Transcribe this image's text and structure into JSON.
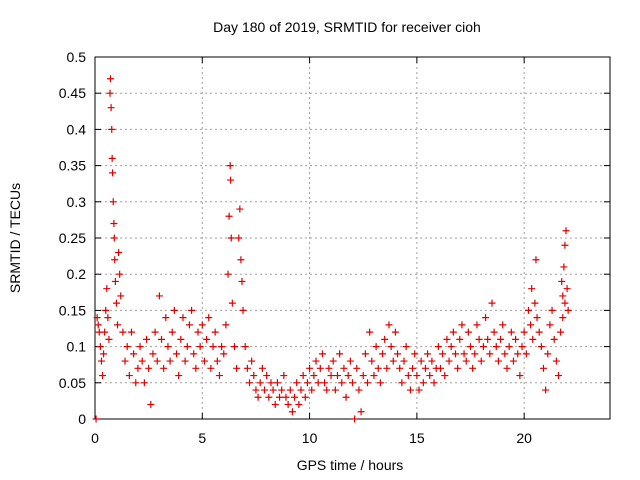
{
  "chart_data": {
    "type": "scatter",
    "title": "Day 180 of 2019, SRMTID for receiver cioh",
    "xlabel": "GPS time / hours",
    "ylabel": "SRMTID / TECUs",
    "xlim": [
      0,
      24
    ],
    "ylim": [
      0,
      0.5
    ],
    "xticks": [
      0,
      5,
      10,
      15,
      20
    ],
    "yticks": [
      0,
      0.05,
      0.1,
      0.15,
      0.2,
      0.25,
      0.3,
      0.35,
      0.4,
      0.45,
      0.5
    ],
    "grid": true,
    "marker": "plus",
    "color": "#e00000",
    "series": [
      {
        "points": [
          [
            0.05,
            0.0
          ],
          [
            0.1,
            0.14
          ],
          [
            0.15,
            0.13
          ],
          [
            0.2,
            0.12
          ],
          [
            0.25,
            0.1
          ],
          [
            0.3,
            0.08
          ],
          [
            0.35,
            0.06
          ],
          [
            0.4,
            0.09
          ],
          [
            0.45,
            0.12
          ],
          [
            0.5,
            0.15
          ],
          [
            0.55,
            0.18
          ],
          [
            0.6,
            0.14
          ],
          [
            0.65,
            0.11
          ],
          [
            0.7,
            0.45
          ],
          [
            0.72,
            0.47
          ],
          [
            0.75,
            0.43
          ],
          [
            0.78,
            0.4
          ],
          [
            0.8,
            0.36
          ],
          [
            0.82,
            0.34
          ],
          [
            0.85,
            0.3
          ],
          [
            0.88,
            0.27
          ],
          [
            0.9,
            0.25
          ],
          [
            0.92,
            0.22
          ],
          [
            0.95,
            0.19
          ],
          [
            1.0,
            0.16
          ],
          [
            1.05,
            0.13
          ],
          [
            1.1,
            0.23
          ],
          [
            1.15,
            0.2
          ],
          [
            1.2,
            0.17
          ],
          [
            1.3,
            0.12
          ],
          [
            1.4,
            0.08
          ],
          [
            1.5,
            0.1
          ],
          [
            1.6,
            0.06
          ],
          [
            1.7,
            0.12
          ],
          [
            1.8,
            0.09
          ],
          [
            1.9,
            0.05
          ],
          [
            2.0,
            0.07
          ],
          [
            2.1,
            0.1
          ],
          [
            2.2,
            0.08
          ],
          [
            2.3,
            0.05
          ],
          [
            2.4,
            0.11
          ],
          [
            2.5,
            0.07
          ],
          [
            2.6,
            0.02
          ],
          [
            2.7,
            0.09
          ],
          [
            2.8,
            0.12
          ],
          [
            2.9,
            0.08
          ],
          [
            3.0,
            0.17
          ],
          [
            3.1,
            0.11
          ],
          [
            3.2,
            0.07
          ],
          [
            3.3,
            0.14
          ],
          [
            3.4,
            0.1
          ],
          [
            3.5,
            0.08
          ],
          [
            3.6,
            0.12
          ],
          [
            3.7,
            0.15
          ],
          [
            3.8,
            0.09
          ],
          [
            3.9,
            0.06
          ],
          [
            4.0,
            0.11
          ],
          [
            4.1,
            0.14
          ],
          [
            4.2,
            0.08
          ],
          [
            4.3,
            0.1
          ],
          [
            4.4,
            0.13
          ],
          [
            4.5,
            0.15
          ],
          [
            4.6,
            0.09
          ],
          [
            4.7,
            0.07
          ],
          [
            4.8,
            0.12
          ],
          [
            4.9,
            0.1
          ],
          [
            5.0,
            0.13
          ],
          [
            5.1,
            0.08
          ],
          [
            5.2,
            0.11
          ],
          [
            5.3,
            0.14
          ],
          [
            5.4,
            0.07
          ],
          [
            5.5,
            0.1
          ],
          [
            5.6,
            0.12
          ],
          [
            5.7,
            0.08
          ],
          [
            5.8,
            0.06
          ],
          [
            5.9,
            0.1
          ],
          [
            6.0,
            0.09
          ],
          [
            6.1,
            0.13
          ],
          [
            6.2,
            0.2
          ],
          [
            6.25,
            0.28
          ],
          [
            6.3,
            0.35
          ],
          [
            6.32,
            0.33
          ],
          [
            6.35,
            0.25
          ],
          [
            6.4,
            0.16
          ],
          [
            6.5,
            0.1
          ],
          [
            6.6,
            0.07
          ],
          [
            6.7,
            0.25
          ],
          [
            6.75,
            0.29
          ],
          [
            6.8,
            0.22
          ],
          [
            6.85,
            0.19
          ],
          [
            6.9,
            0.15
          ],
          [
            7.0,
            0.1
          ],
          [
            7.1,
            0.07
          ],
          [
            7.2,
            0.05
          ],
          [
            7.3,
            0.08
          ],
          [
            7.4,
            0.06
          ],
          [
            7.5,
            0.04
          ],
          [
            7.6,
            0.03
          ],
          [
            7.7,
            0.05
          ],
          [
            7.8,
            0.07
          ],
          [
            7.9,
            0.04
          ],
          [
            8.0,
            0.06
          ],
          [
            8.1,
            0.03
          ],
          [
            8.2,
            0.05
          ],
          [
            8.3,
            0.04
          ],
          [
            8.4,
            0.02
          ],
          [
            8.5,
            0.05
          ],
          [
            8.6,
            0.03
          ],
          [
            8.7,
            0.04
          ],
          [
            8.8,
            0.06
          ],
          [
            8.9,
            0.03
          ],
          [
            9.0,
            0.02
          ],
          [
            9.1,
            0.04
          ],
          [
            9.2,
            0.01
          ],
          [
            9.3,
            0.03
          ],
          [
            9.4,
            0.05
          ],
          [
            9.5,
            0.02
          ],
          [
            9.6,
            0.04
          ],
          [
            9.7,
            0.06
          ],
          [
            9.8,
            0.03
          ],
          [
            9.9,
            0.05
          ],
          [
            10.0,
            0.07
          ],
          [
            10.1,
            0.04
          ],
          [
            10.2,
            0.06
          ],
          [
            10.3,
            0.08
          ],
          [
            10.4,
            0.05
          ],
          [
            10.5,
            0.07
          ],
          [
            10.6,
            0.09
          ],
          [
            10.7,
            0.05
          ],
          [
            10.8,
            0.04
          ],
          [
            10.9,
            0.07
          ],
          [
            11.0,
            0.06
          ],
          [
            11.1,
            0.08
          ],
          [
            11.2,
            0.04
          ],
          [
            11.3,
            0.06
          ],
          [
            11.4,
            0.09
          ],
          [
            11.5,
            0.05
          ],
          [
            11.6,
            0.07
          ],
          [
            11.7,
            0.03
          ],
          [
            11.8,
            0.06
          ],
          [
            11.9,
            0.08
          ],
          [
            12.0,
            0.05
          ],
          [
            12.1,
            0.0
          ],
          [
            12.2,
            0.07
          ],
          [
            12.3,
            0.04
          ],
          [
            12.4,
            0.01
          ],
          [
            12.5,
            0.06
          ],
          [
            12.6,
            0.09
          ],
          [
            12.7,
            0.05
          ],
          [
            12.8,
            0.12
          ],
          [
            12.9,
            0.08
          ],
          [
            13.0,
            0.06
          ],
          [
            13.1,
            0.1
          ],
          [
            13.2,
            0.07
          ],
          [
            13.3,
            0.05
          ],
          [
            13.4,
            0.09
          ],
          [
            13.5,
            0.11
          ],
          [
            13.6,
            0.07
          ],
          [
            13.7,
            0.13
          ],
          [
            13.8,
            0.1
          ],
          [
            13.9,
            0.08
          ],
          [
            14.0,
            0.12
          ],
          [
            14.1,
            0.09
          ],
          [
            14.2,
            0.07
          ],
          [
            14.3,
            0.05
          ],
          [
            14.4,
            0.08
          ],
          [
            14.5,
            0.1
          ],
          [
            14.6,
            0.06
          ],
          [
            14.7,
            0.04
          ],
          [
            14.8,
            0.07
          ],
          [
            14.9,
            0.09
          ],
          [
            15.0,
            0.06
          ],
          [
            15.1,
            0.04
          ],
          [
            15.2,
            0.08
          ],
          [
            15.3,
            0.05
          ],
          [
            15.4,
            0.07
          ],
          [
            15.5,
            0.09
          ],
          [
            15.6,
            0.06
          ],
          [
            15.7,
            0.08
          ],
          [
            15.8,
            0.05
          ],
          [
            15.9,
            0.07
          ],
          [
            16.0,
            0.1
          ],
          [
            16.1,
            0.07
          ],
          [
            16.2,
            0.09
          ],
          [
            16.3,
            0.06
          ],
          [
            16.4,
            0.11
          ],
          [
            16.5,
            0.08
          ],
          [
            16.6,
            0.1
          ],
          [
            16.7,
            0.12
          ],
          [
            16.8,
            0.09
          ],
          [
            16.9,
            0.07
          ],
          [
            17.0,
            0.11
          ],
          [
            17.1,
            0.13
          ],
          [
            17.2,
            0.09
          ],
          [
            17.3,
            0.08
          ],
          [
            17.4,
            0.12
          ],
          [
            17.5,
            0.1
          ],
          [
            17.6,
            0.07
          ],
          [
            17.7,
            0.09
          ],
          [
            17.8,
            0.13
          ],
          [
            17.9,
            0.11
          ],
          [
            18.0,
            0.08
          ],
          [
            18.1,
            0.1
          ],
          [
            18.2,
            0.14
          ],
          [
            18.3,
            0.11
          ],
          [
            18.4,
            0.09
          ],
          [
            18.5,
            0.16
          ],
          [
            18.6,
            0.12
          ],
          [
            18.7,
            0.1
          ],
          [
            18.8,
            0.08
          ],
          [
            18.9,
            0.11
          ],
          [
            19.0,
            0.13
          ],
          [
            19.1,
            0.09
          ],
          [
            19.2,
            0.07
          ],
          [
            19.3,
            0.1
          ],
          [
            19.4,
            0.12
          ],
          [
            19.5,
            0.08
          ],
          [
            19.6,
            0.11
          ],
          [
            19.7,
            0.09
          ],
          [
            19.8,
            0.06
          ],
          [
            19.9,
            0.1
          ],
          [
            20.0,
            0.12
          ],
          [
            20.1,
            0.09
          ],
          [
            20.2,
            0.15
          ],
          [
            20.3,
            0.13
          ],
          [
            20.35,
            0.18
          ],
          [
            20.4,
            0.11
          ],
          [
            20.5,
            0.16
          ],
          [
            20.55,
            0.22
          ],
          [
            20.6,
            0.14
          ],
          [
            20.7,
            0.12
          ],
          [
            20.8,
            0.1
          ],
          [
            20.9,
            0.07
          ],
          [
            21.0,
            0.04
          ],
          [
            21.1,
            0.09
          ],
          [
            21.2,
            0.13
          ],
          [
            21.3,
            0.15
          ],
          [
            21.4,
            0.11
          ],
          [
            21.5,
            0.08
          ],
          [
            21.6,
            0.06
          ],
          [
            21.7,
            0.12
          ],
          [
            21.75,
            0.19
          ],
          [
            21.8,
            0.17
          ],
          [
            21.85,
            0.21
          ],
          [
            21.9,
            0.24
          ],
          [
            21.95,
            0.26
          ],
          [
            22.0,
            0.18
          ],
          [
            22.05,
            0.15
          ],
          [
            21.9,
            0.16
          ],
          [
            21.8,
            0.14
          ]
        ]
      }
    ]
  }
}
